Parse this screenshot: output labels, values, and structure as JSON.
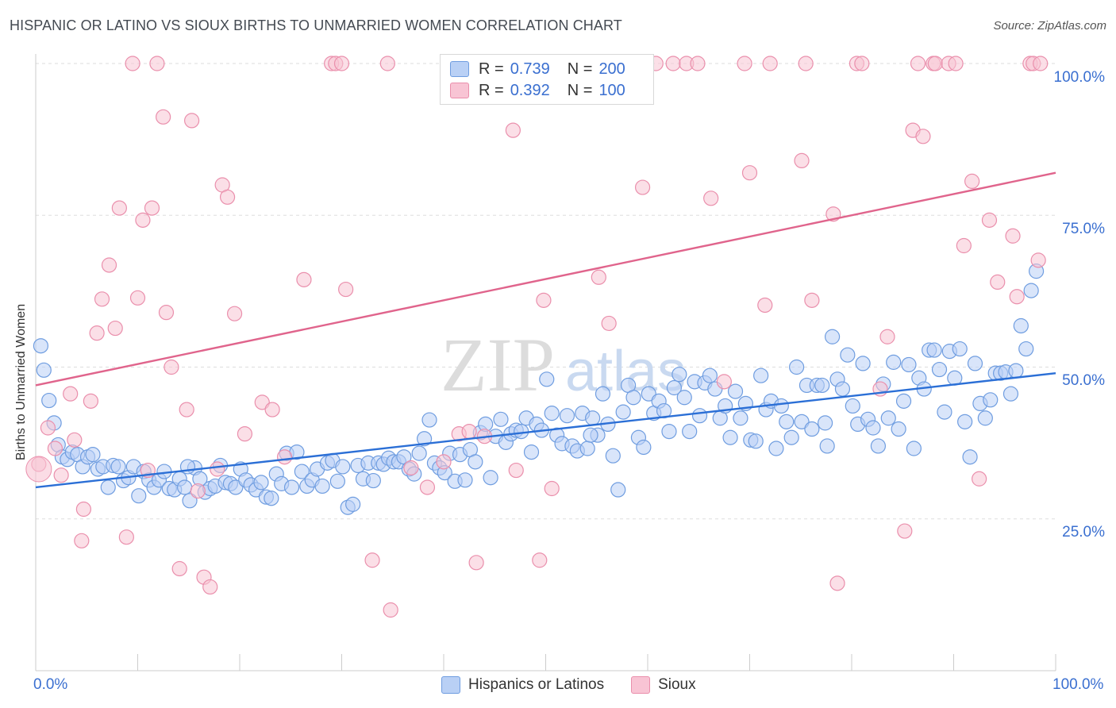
{
  "header": {
    "title": "HISPANIC OR LATINO VS SIOUX BIRTHS TO UNMARRIED WOMEN CORRELATION CHART",
    "source": "Source: ZipAtlas.com"
  },
  "watermark": {
    "zip": "ZIP",
    "atlas": "atlas"
  },
  "colors": {
    "blue_fill": "#b9d0f5",
    "blue_stroke": "#6f9de0",
    "blue_line": "#2b6fd6",
    "pink_fill": "#f8c4d4",
    "pink_stroke": "#ea8fac",
    "pink_line": "#e0648c",
    "tick_text": "#3a6fd0",
    "grid": "#dddddd"
  },
  "legend": {
    "rows": [
      {
        "r_label": "R =",
        "r_value": "0.739",
        "n_label": "N =",
        "n_value": "200"
      },
      {
        "r_label": "R =",
        "r_value": "0.392",
        "n_label": "N =",
        "n_value": "100"
      }
    ]
  },
  "chart_data": {
    "type": "scatter",
    "title": "HISPANIC OR LATINO VS SIOUX BIRTHS TO UNMARRIED WOMEN CORRELATION CHART",
    "xlabel": "",
    "ylabel": "Births to Unmarried Women",
    "xlim": [
      0,
      100
    ],
    "ylim": [
      0,
      100
    ],
    "x_tick_labels": [
      "0.0%",
      "100.0%"
    ],
    "y_tick_labels": [
      "25.0%",
      "50.0%",
      "75.0%",
      "100.0%"
    ],
    "y_ticks": [
      25,
      50,
      75,
      100
    ],
    "grid": true,
    "legend_position": "top-center",
    "series": [
      {
        "name": "Hispanics or Latinos",
        "r": 0.739,
        "n": 200,
        "trend": {
          "x": [
            0,
            100
          ],
          "y": [
            30.2,
            49.0
          ]
        },
        "points": [
          [
            0.5,
            53.5
          ],
          [
            0.8,
            49.5
          ],
          [
            1.3,
            44.5
          ],
          [
            1.8,
            40.8
          ],
          [
            2.2,
            37.2
          ],
          [
            2.6,
            35.2
          ],
          [
            3.1,
            34.8
          ],
          [
            3.6,
            36.0
          ],
          [
            4.1,
            35.6
          ],
          [
            4.6,
            33.6
          ],
          [
            5.1,
            35.2
          ],
          [
            5.6,
            35.6
          ],
          [
            6.1,
            33.2
          ],
          [
            6.6,
            33.6
          ],
          [
            7.1,
            30.2
          ],
          [
            7.6,
            33.8
          ],
          [
            8.1,
            33.6
          ],
          [
            8.6,
            31.3
          ],
          [
            9.1,
            31.8
          ],
          [
            9.6,
            33.6
          ],
          [
            10.1,
            28.8
          ],
          [
            10.6,
            32.8
          ],
          [
            11.1,
            31.4
          ],
          [
            11.6,
            30.2
          ],
          [
            12.1,
            31.4
          ],
          [
            12.6,
            32.8
          ],
          [
            13.1,
            30.0
          ],
          [
            13.6,
            29.8
          ],
          [
            14.1,
            31.6
          ],
          [
            14.6,
            30.2
          ],
          [
            15.1,
            28.0
          ],
          [
            15.6,
            33.4
          ],
          [
            16.1,
            31.6
          ],
          [
            16.6,
            29.4
          ],
          [
            17.1,
            30.0
          ],
          [
            17.6,
            30.4
          ],
          [
            18.1,
            33.8
          ],
          [
            18.6,
            31.0
          ],
          [
            19.1,
            30.8
          ],
          [
            19.6,
            30.2
          ],
          [
            20.1,
            33.2
          ],
          [
            20.6,
            31.4
          ],
          [
            21.1,
            30.6
          ],
          [
            21.6,
            29.8
          ],
          [
            22.1,
            31.0
          ],
          [
            22.6,
            28.6
          ],
          [
            23.1,
            28.4
          ],
          [
            23.6,
            32.4
          ],
          [
            24.1,
            30.8
          ],
          [
            24.6,
            35.8
          ],
          [
            25.1,
            30.2
          ],
          [
            25.6,
            36.0
          ],
          [
            26.1,
            32.8
          ],
          [
            26.6,
            30.4
          ],
          [
            27.1,
            31.4
          ],
          [
            27.6,
            33.2
          ],
          [
            28.1,
            30.4
          ],
          [
            28.6,
            34.2
          ],
          [
            29.1,
            34.6
          ],
          [
            29.6,
            31.2
          ],
          [
            30.1,
            33.6
          ],
          [
            30.6,
            26.9
          ],
          [
            31.1,
            27.4
          ],
          [
            31.6,
            33.8
          ],
          [
            32.1,
            31.6
          ],
          [
            32.6,
            34.2
          ],
          [
            33.1,
            31.3
          ],
          [
            33.6,
            34.2
          ],
          [
            34.1,
            34.0
          ],
          [
            34.6,
            35.0
          ],
          [
            35.1,
            34.4
          ],
          [
            35.6,
            34.4
          ],
          [
            36.1,
            35.2
          ],
          [
            36.6,
            33.2
          ],
          [
            37.1,
            32.4
          ],
          [
            37.6,
            35.8
          ],
          [
            38.1,
            38.2
          ],
          [
            38.6,
            41.3
          ],
          [
            39.1,
            34.2
          ],
          [
            39.6,
            33.4
          ],
          [
            40.1,
            32.6
          ],
          [
            40.6,
            35.8
          ],
          [
            41.1,
            31.2
          ],
          [
            41.6,
            35.6
          ],
          [
            42.1,
            31.4
          ],
          [
            42.6,
            36.4
          ],
          [
            43.1,
            34.4
          ],
          [
            43.6,
            39.2
          ],
          [
            44.1,
            40.6
          ],
          [
            44.6,
            31.8
          ],
          [
            45.1,
            38.6
          ],
          [
            45.6,
            41.4
          ],
          [
            46.1,
            37.6
          ],
          [
            46.6,
            39.0
          ],
          [
            47.1,
            39.6
          ],
          [
            47.6,
            39.4
          ],
          [
            48.1,
            41.6
          ],
          [
            48.6,
            36.0
          ],
          [
            49.1,
            40.6
          ],
          [
            49.6,
            39.6
          ],
          [
            50.1,
            48.0
          ],
          [
            50.6,
            42.4
          ],
          [
            51.1,
            38.8
          ],
          [
            51.6,
            37.4
          ],
          [
            52.1,
            42.0
          ],
          [
            52.6,
            37.0
          ],
          [
            53.1,
            36.2
          ],
          [
            53.6,
            42.4
          ],
          [
            54.1,
            36.6
          ],
          [
            54.6,
            41.6
          ],
          [
            55.1,
            38.8
          ],
          [
            55.6,
            45.6
          ],
          [
            56.1,
            40.6
          ],
          [
            56.6,
            35.4
          ],
          [
            57.1,
            29.8
          ],
          [
            57.6,
            42.6
          ],
          [
            58.1,
            47.0
          ],
          [
            58.6,
            45.0
          ],
          [
            59.1,
            38.4
          ],
          [
            59.6,
            36.8
          ],
          [
            60.1,
            45.6
          ],
          [
            60.6,
            42.4
          ],
          [
            61.1,
            44.4
          ],
          [
            61.6,
            42.8
          ],
          [
            62.1,
            39.4
          ],
          [
            62.6,
            46.6
          ],
          [
            63.1,
            48.8
          ],
          [
            63.6,
            45.0
          ],
          [
            64.1,
            39.4
          ],
          [
            64.6,
            47.6
          ],
          [
            65.1,
            42.0
          ],
          [
            65.6,
            47.4
          ],
          [
            66.1,
            48.6
          ],
          [
            66.6,
            46.4
          ],
          [
            67.1,
            41.6
          ],
          [
            67.6,
            43.6
          ],
          [
            68.1,
            38.4
          ],
          [
            68.6,
            46.0
          ],
          [
            69.1,
            41.6
          ],
          [
            69.6,
            44.0
          ],
          [
            70.1,
            38.0
          ],
          [
            70.6,
            37.8
          ],
          [
            71.1,
            48.6
          ],
          [
            71.6,
            43.0
          ],
          [
            72.1,
            44.4
          ],
          [
            72.6,
            36.6
          ],
          [
            73.1,
            43.6
          ],
          [
            73.6,
            41.0
          ],
          [
            74.1,
            38.4
          ],
          [
            74.6,
            50.0
          ],
          [
            75.1,
            41.0
          ],
          [
            75.6,
            47.0
          ],
          [
            76.1,
            39.8
          ],
          [
            76.6,
            47.0
          ],
          [
            77.1,
            47.0
          ],
          [
            77.6,
            37.0
          ],
          [
            78.1,
            55.0
          ],
          [
            78.6,
            48.0
          ],
          [
            79.1,
            46.4
          ],
          [
            79.6,
            52.0
          ],
          [
            80.1,
            43.6
          ],
          [
            80.6,
            40.6
          ],
          [
            81.1,
            50.6
          ],
          [
            81.6,
            41.4
          ],
          [
            82.1,
            40.0
          ],
          [
            82.6,
            37.0
          ],
          [
            83.1,
            47.2
          ],
          [
            83.6,
            41.6
          ],
          [
            84.1,
            50.8
          ],
          [
            84.6,
            39.8
          ],
          [
            85.1,
            44.4
          ],
          [
            85.6,
            50.4
          ],
          [
            86.1,
            36.6
          ],
          [
            86.6,
            48.2
          ],
          [
            87.1,
            46.4
          ],
          [
            87.6,
            52.8
          ],
          [
            88.1,
            52.8
          ],
          [
            88.6,
            49.6
          ],
          [
            89.1,
            42.6
          ],
          [
            89.6,
            52.6
          ],
          [
            90.1,
            48.2
          ],
          [
            90.6,
            53.0
          ],
          [
            91.1,
            41.0
          ],
          [
            91.6,
            35.2
          ],
          [
            92.1,
            50.6
          ],
          [
            92.6,
            44.0
          ],
          [
            93.1,
            41.6
          ],
          [
            93.6,
            44.6
          ],
          [
            94.1,
            49.0
          ],
          [
            94.6,
            49.0
          ],
          [
            95.1,
            49.2
          ],
          [
            95.6,
            45.6
          ],
          [
            96.1,
            49.4
          ],
          [
            96.6,
            56.8
          ],
          [
            97.1,
            53.0
          ],
          [
            97.6,
            62.6
          ],
          [
            98.1,
            65.8
          ],
          [
            14.9,
            33.6
          ],
          [
            54.4,
            38.8
          ],
          [
            77.4,
            40.8
          ]
        ]
      },
      {
        "name": "Sioux",
        "r": 0.392,
        "n": 100,
        "trend": {
          "x": [
            0,
            100
          ],
          "y": [
            47.0,
            82.0
          ]
        },
        "points": [
          [
            0.3,
            34.0
          ],
          [
            1.2,
            40.0
          ],
          [
            1.9,
            36.6
          ],
          [
            2.5,
            32.2
          ],
          [
            3.4,
            45.6
          ],
          [
            3.8,
            38.0
          ],
          [
            4.5,
            21.4
          ],
          [
            4.7,
            26.6
          ],
          [
            5.4,
            44.4
          ],
          [
            6.0,
            55.6
          ],
          [
            6.5,
            61.2
          ],
          [
            7.2,
            66.8
          ],
          [
            7.8,
            56.4
          ],
          [
            8.2,
            76.2
          ],
          [
            8.9,
            22.0
          ],
          [
            9.5,
            100
          ],
          [
            10.0,
            61.4
          ],
          [
            10.5,
            74.2
          ],
          [
            11.0,
            33.0
          ],
          [
            11.4,
            76.2
          ],
          [
            11.9,
            100
          ],
          [
            12.5,
            91.2
          ],
          [
            12.8,
            59.0
          ],
          [
            13.3,
            50.0
          ],
          [
            14.1,
            16.8
          ],
          [
            14.8,
            43.0
          ],
          [
            15.3,
            90.6
          ],
          [
            15.9,
            29.6
          ],
          [
            16.5,
            15.4
          ],
          [
            17.1,
            13.8
          ],
          [
            17.8,
            33.2
          ],
          [
            18.3,
            80.0
          ],
          [
            18.8,
            78.0
          ],
          [
            19.5,
            58.8
          ],
          [
            20.5,
            39.0
          ],
          [
            22.2,
            44.2
          ],
          [
            23.2,
            43.0
          ],
          [
            24.4,
            35.2
          ],
          [
            26.3,
            64.4
          ],
          [
            29.0,
            100
          ],
          [
            29.4,
            100
          ],
          [
            30.0,
            100
          ],
          [
            30.4,
            62.8
          ],
          [
            33.0,
            18.2
          ],
          [
            34.5,
            100
          ],
          [
            34.8,
            10.0
          ],
          [
            36.8,
            33.4
          ],
          [
            38.4,
            30.2
          ],
          [
            40.0,
            34.4
          ],
          [
            41.5,
            39.0
          ],
          [
            42.5,
            39.4
          ],
          [
            42.8,
            100
          ],
          [
            43.2,
            17.8
          ],
          [
            44.0,
            38.6
          ],
          [
            46.8,
            89.0
          ],
          [
            47.1,
            33.0
          ],
          [
            49.4,
            18.2
          ],
          [
            49.8,
            61.0
          ],
          [
            50.6,
            30.0
          ],
          [
            55.2,
            64.8
          ],
          [
            56.2,
            57.2
          ],
          [
            59.5,
            79.6
          ],
          [
            60.8,
            100
          ],
          [
            62.5,
            100
          ],
          [
            63.8,
            100
          ],
          [
            64.9,
            100
          ],
          [
            66.2,
            77.8
          ],
          [
            67.5,
            47.6
          ],
          [
            69.5,
            100
          ],
          [
            70.0,
            82.0
          ],
          [
            71.5,
            60.2
          ],
          [
            72.0,
            100
          ],
          [
            75.1,
            84.0
          ],
          [
            75.5,
            100
          ],
          [
            76.1,
            61.0
          ],
          [
            78.2,
            75.2
          ],
          [
            78.6,
            14.4
          ],
          [
            80.5,
            100
          ],
          [
            81.0,
            100
          ],
          [
            82.8,
            46.4
          ],
          [
            83.5,
            55.0
          ],
          [
            85.2,
            23.0
          ],
          [
            86.0,
            89.0
          ],
          [
            86.5,
            100
          ],
          [
            87.0,
            88.0
          ],
          [
            88.0,
            100
          ],
          [
            88.2,
            100
          ],
          [
            89.5,
            100
          ],
          [
            90.2,
            100
          ],
          [
            91.0,
            70.0
          ],
          [
            91.8,
            80.6
          ],
          [
            92.5,
            31.6
          ],
          [
            93.5,
            74.2
          ],
          [
            94.3,
            64.0
          ],
          [
            95.8,
            71.6
          ],
          [
            96.2,
            61.6
          ],
          [
            97.5,
            100
          ],
          [
            97.8,
            100
          ],
          [
            98.5,
            100
          ],
          [
            98.3,
            67.6
          ]
        ]
      }
    ]
  },
  "bottom_legend": {
    "blue_label": "Hispanics or Latinos",
    "pink_label": "Sioux"
  }
}
